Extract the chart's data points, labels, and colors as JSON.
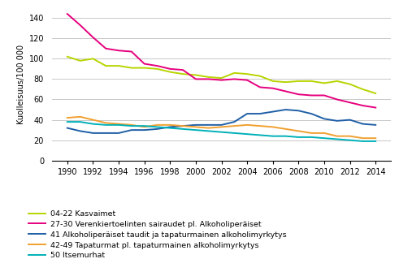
{
  "years": [
    1990,
    1991,
    1992,
    1993,
    1994,
    1995,
    1996,
    1997,
    1998,
    1999,
    2000,
    2001,
    2002,
    2003,
    2004,
    2005,
    2006,
    2007,
    2008,
    2009,
    2010,
    2011,
    2012,
    2013,
    2014
  ],
  "kasvaimet": [
    102,
    98,
    100,
    93,
    93,
    91,
    91,
    90,
    87,
    85,
    84,
    82,
    81,
    86,
    85,
    83,
    78,
    77,
    78,
    78,
    76,
    78,
    75,
    70,
    66
  ],
  "verenkierto": [
    144,
    133,
    121,
    110,
    108,
    107,
    95,
    93,
    90,
    89,
    80,
    80,
    79,
    80,
    79,
    72,
    71,
    68,
    65,
    64,
    64,
    60,
    57,
    54,
    52
  ],
  "alkoholi": [
    32,
    29,
    27,
    27,
    27,
    30,
    30,
    31,
    33,
    34,
    35,
    35,
    35,
    38,
    46,
    46,
    48,
    50,
    49,
    46,
    41,
    39,
    40,
    36,
    35
  ],
  "tapaturmat": [
    42,
    43,
    40,
    37,
    36,
    35,
    33,
    35,
    35,
    34,
    33,
    32,
    33,
    34,
    35,
    34,
    33,
    31,
    29,
    27,
    27,
    24,
    24,
    22,
    22
  ],
  "itsemurhat": [
    38,
    38,
    36,
    35,
    35,
    34,
    34,
    33,
    32,
    31,
    30,
    29,
    28,
    27,
    26,
    25,
    24,
    24,
    23,
    23,
    22,
    21,
    20,
    19,
    19
  ],
  "colors": {
    "kasvaimet": "#b8d400",
    "verenkierto": "#e6007e",
    "alkoholi": "#1f5fa6",
    "tapaturmat": "#f0a030",
    "itsemurhat": "#00b0b8"
  },
  "legend_labels": [
    "04-22 Kasvaimet",
    "27-30 Verenkiertoelinten sairaudet pl. Alkoholiperäiset",
    "41 Alkoholiperäiset taudit ja tapaturmainen alkoholimyrkytys",
    "42-49 Tapaturmat pl. tapaturmainen alkoholimyrkytys",
    "50 Itsemurhat"
  ],
  "ylabel": "Kuolleisuus/100 000",
  "ylim": [
    0,
    150
  ],
  "yticks": [
    0,
    20,
    40,
    60,
    80,
    100,
    120,
    140
  ],
  "xticks": [
    1990,
    1992,
    1994,
    1996,
    1998,
    2000,
    2002,
    2004,
    2006,
    2008,
    2010,
    2012,
    2014
  ],
  "background_color": "#ffffff",
  "grid_color": "#c8c8c8",
  "linewidth": 1.4
}
